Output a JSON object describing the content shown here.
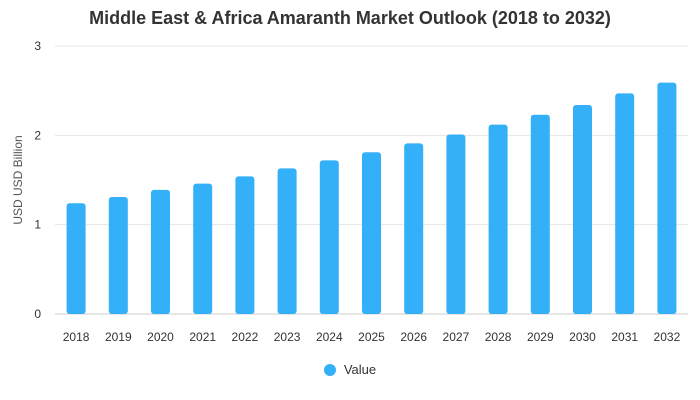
{
  "chart_data": {
    "type": "bar",
    "title": "Middle East & Africa Amaranth Market Outlook (2018 to 2032)",
    "xlabel": "",
    "ylabel": "USD USD Billion",
    "ylim": [
      0,
      3
    ],
    "yticks": [
      0,
      1,
      2,
      3
    ],
    "grid": true,
    "legend_position": "bottom",
    "categories": [
      "2018",
      "2019",
      "2020",
      "2021",
      "2022",
      "2023",
      "2024",
      "2025",
      "2026",
      "2027",
      "2028",
      "2029",
      "2030",
      "2031",
      "2032"
    ],
    "series": [
      {
        "name": "Value",
        "color": "#33b0f7",
        "values": [
          1.24,
          1.31,
          1.39,
          1.46,
          1.54,
          1.63,
          1.72,
          1.81,
          1.91,
          2.01,
          2.12,
          2.23,
          2.34,
          2.47,
          2.59
        ]
      }
    ]
  }
}
